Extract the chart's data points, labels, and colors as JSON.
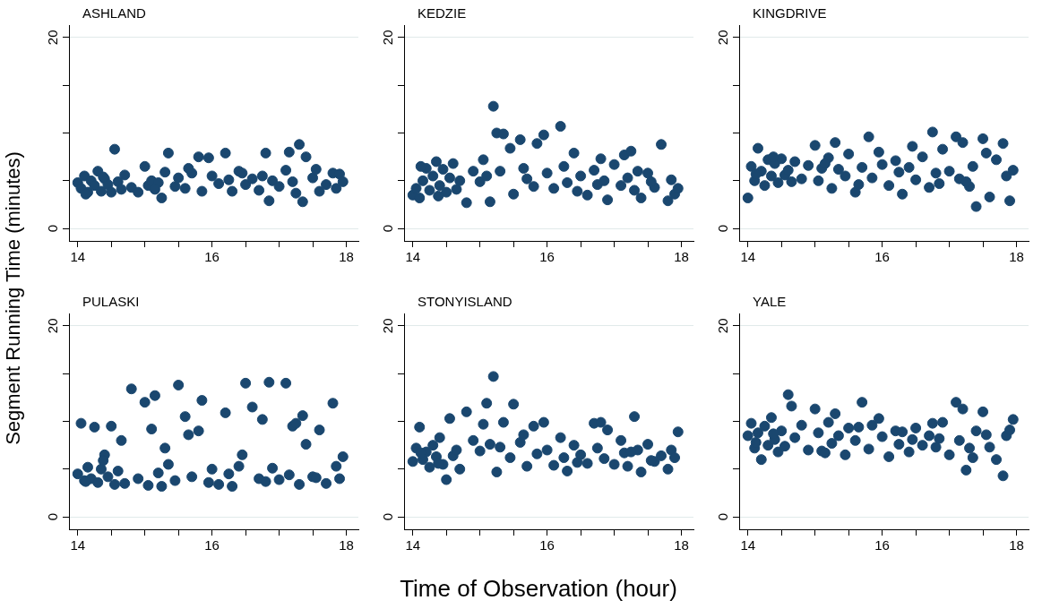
{
  "chart_data": [
    {
      "type": "scatter",
      "title": "ASHLAND",
      "ylabel": "Segment Running Time (minutes)",
      "color": "#1a476f",
      "marker": "circle",
      "grid": "y",
      "xlim": [
        13.87,
        18.18
      ],
      "ylim": [
        -1.3,
        21.3
      ],
      "xticks": [
        14,
        {
          "value": 14.5,
          "label": null
        },
        {
          "value": 15,
          "label": null
        },
        {
          "value": 15.5,
          "label": null
        },
        16,
        {
          "value": 16.5,
          "label": null
        },
        {
          "value": 17,
          "label": null
        },
        {
          "value": 17.5,
          "label": null
        },
        18
      ],
      "yticks": [
        {
          "value": 0,
          "label": "0"
        },
        {
          "value": 5,
          "label": null
        },
        {
          "value": 10,
          "label": null
        },
        {
          "value": 15,
          "label": null
        },
        {
          "value": 20,
          "label": "20"
        }
      ],
      "x": [
        14.0,
        14.05,
        14.1,
        14.15,
        14.2,
        14.25,
        14.3,
        14.35,
        14.4,
        14.45,
        14.5,
        14.55,
        14.6,
        14.65,
        14.7,
        14.8,
        14.9,
        15.0,
        15.05,
        15.1,
        15.2,
        15.25,
        15.3,
        15.35,
        15.45,
        15.5,
        15.6,
        15.7,
        15.8,
        15.85,
        15.95,
        16.0,
        16.1,
        16.2,
        16.25,
        16.3,
        16.4,
        16.5,
        16.6,
        16.7,
        16.75,
        16.8,
        16.85,
        16.9,
        17.0,
        17.1,
        17.15,
        17.2,
        17.3,
        17.35,
        17.4,
        17.5,
        17.6,
        17.7,
        17.8,
        17.85,
        17.9,
        17.95,
        14.12,
        14.38,
        15.15,
        15.65,
        16.45,
        17.25,
        17.55
      ],
      "values": [
        4.8,
        4.2,
        5.5,
        3.8,
        5.0,
        4.5,
        6.0,
        3.9,
        5.2,
        4.6,
        3.8,
        8.3,
        4.9,
        4.1,
        5.6,
        4.3,
        3.8,
        6.5,
        4.5,
        5.0,
        4.8,
        3.2,
        5.9,
        7.9,
        4.4,
        5.3,
        4.2,
        5.8,
        7.5,
        3.9,
        7.4,
        5.5,
        4.7,
        7.9,
        5.1,
        3.9,
        6.0,
        4.6,
        5.2,
        4.0,
        5.5,
        7.9,
        2.9,
        5.0,
        4.4,
        6.1,
        8.0,
        4.9,
        8.8,
        2.8,
        7.5,
        5.3,
        3.9,
        4.6,
        5.8,
        4.2,
        5.7,
        4.9,
        3.6,
        5.4,
        4.1,
        6.3,
        5.8,
        3.7,
        6.2
      ]
    },
    {
      "type": "scatter",
      "title": "KEDZIE",
      "color": "#1a476f",
      "marker": "circle",
      "grid": "y",
      "xlim": [
        13.87,
        18.18
      ],
      "ylim": [
        -1.3,
        21.3
      ],
      "xticks": [
        14,
        {
          "value": 14.5,
          "label": null
        },
        {
          "value": 15,
          "label": null
        },
        {
          "value": 15.5,
          "label": null
        },
        16,
        {
          "value": 16.5,
          "label": null
        },
        {
          "value": 17,
          "label": null
        },
        {
          "value": 17.5,
          "label": null
        },
        18
      ],
      "yticks": [
        {
          "value": 0,
          "label": "0"
        },
        {
          "value": 5,
          "label": null
        },
        {
          "value": 10,
          "label": null
        },
        {
          "value": 15,
          "label": null
        },
        {
          "value": 20,
          "label": "20"
        }
      ],
      "x": [
        14.0,
        14.05,
        14.1,
        14.15,
        14.2,
        14.25,
        14.3,
        14.35,
        14.4,
        14.45,
        14.5,
        14.55,
        14.6,
        14.65,
        14.7,
        14.8,
        14.9,
        15.0,
        15.05,
        15.1,
        15.2,
        15.25,
        15.3,
        15.35,
        15.45,
        15.5,
        15.6,
        15.7,
        15.8,
        15.85,
        15.95,
        16.0,
        16.1,
        16.2,
        16.25,
        16.3,
        16.4,
        16.5,
        16.6,
        16.7,
        16.75,
        16.8,
        16.85,
        16.9,
        17.0,
        17.1,
        17.15,
        17.2,
        17.3,
        17.35,
        17.4,
        17.5,
        17.6,
        17.7,
        17.8,
        17.85,
        17.9,
        17.95,
        14.12,
        14.38,
        15.15,
        15.65,
        16.45,
        17.25,
        17.55
      ],
      "values": [
        3.5,
        4.2,
        3.2,
        5.0,
        6.3,
        4.0,
        5.5,
        7.0,
        4.5,
        6.2,
        3.8,
        5.3,
        6.8,
        4.1,
        5.0,
        2.7,
        6.0,
        4.9,
        7.2,
        5.5,
        12.8,
        10.0,
        6.0,
        9.9,
        8.4,
        3.6,
        9.3,
        5.2,
        4.4,
        8.9,
        9.8,
        5.8,
        4.2,
        10.7,
        6.5,
        4.8,
        7.9,
        5.5,
        3.5,
        6.1,
        4.6,
        7.3,
        5.0,
        3.0,
        6.7,
        4.5,
        7.7,
        5.3,
        4.0,
        6.0,
        3.2,
        5.8,
        4.3,
        8.8,
        2.9,
        5.1,
        3.6,
        4.2,
        6.5,
        3.4,
        2.8,
        6.3,
        3.9,
        8.1,
        4.9
      ]
    },
    {
      "type": "scatter",
      "title": "KINGDRIVE",
      "color": "#1a476f",
      "marker": "circle",
      "grid": "y",
      "xlim": [
        13.87,
        18.18
      ],
      "ylim": [
        -1.3,
        21.3
      ],
      "xticks": [
        14,
        {
          "value": 14.5,
          "label": null
        },
        {
          "value": 15,
          "label": null
        },
        {
          "value": 15.5,
          "label": null
        },
        16,
        {
          "value": 16.5,
          "label": null
        },
        {
          "value": 17,
          "label": null
        },
        {
          "value": 17.5,
          "label": null
        },
        18
      ],
      "yticks": [
        {
          "value": 0,
          "label": "0"
        },
        {
          "value": 5,
          "label": null
        },
        {
          "value": 10,
          "label": null
        },
        {
          "value": 15,
          "label": null
        },
        {
          "value": 20,
          "label": "20"
        }
      ],
      "x": [
        14.0,
        14.05,
        14.1,
        14.15,
        14.2,
        14.25,
        14.3,
        14.35,
        14.4,
        14.45,
        14.5,
        14.55,
        14.6,
        14.65,
        14.7,
        14.8,
        14.9,
        15.0,
        15.05,
        15.1,
        15.2,
        15.25,
        15.3,
        15.35,
        15.45,
        15.5,
        15.6,
        15.7,
        15.8,
        15.85,
        15.95,
        16.0,
        16.1,
        16.2,
        16.25,
        16.3,
        16.4,
        16.5,
        16.6,
        16.7,
        16.75,
        16.8,
        16.85,
        16.9,
        17.0,
        17.1,
        17.15,
        17.2,
        17.3,
        17.35,
        17.4,
        17.5,
        17.6,
        17.7,
        17.8,
        17.85,
        17.9,
        17.95,
        14.12,
        14.38,
        15.15,
        15.65,
        16.45,
        17.25,
        17.55
      ],
      "values": [
        3.2,
        6.5,
        5.0,
        8.4,
        6.0,
        4.5,
        7.2,
        5.5,
        6.8,
        4.8,
        7.3,
        5.6,
        6.1,
        4.9,
        7.0,
        5.2,
        6.6,
        8.7,
        5.0,
        6.3,
        7.4,
        4.2,
        9.0,
        6.2,
        5.5,
        7.8,
        3.8,
        6.4,
        9.6,
        5.3,
        8.0,
        6.7,
        4.5,
        7.1,
        5.9,
        3.6,
        6.4,
        5.1,
        7.5,
        4.3,
        10.1,
        5.8,
        4.7,
        8.3,
        6.0,
        9.6,
        5.2,
        9.0,
        4.4,
        6.5,
        2.3,
        9.4,
        3.3,
        7.2,
        8.9,
        5.5,
        2.9,
        6.1,
        5.7,
        7.5,
        6.8,
        4.6,
        8.6,
        4.9,
        7.9
      ]
    },
    {
      "type": "scatter",
      "title": "PULASKI",
      "color": "#1a476f",
      "marker": "circle",
      "grid": "y",
      "xlim": [
        13.87,
        18.18
      ],
      "ylim": [
        -1.3,
        21.3
      ],
      "xticks": [
        14,
        {
          "value": 14.5,
          "label": null
        },
        {
          "value": 15,
          "label": null
        },
        {
          "value": 15.5,
          "label": null
        },
        16,
        {
          "value": 16.5,
          "label": null
        },
        {
          "value": 17,
          "label": null
        },
        {
          "value": 17.5,
          "label": null
        },
        18
      ],
      "yticks": [
        {
          "value": 0,
          "label": "0"
        },
        {
          "value": 5,
          "label": null
        },
        {
          "value": 10,
          "label": null
        },
        {
          "value": 15,
          "label": null
        },
        {
          "value": 20,
          "label": "20"
        }
      ],
      "x": [
        14.0,
        14.05,
        14.1,
        14.15,
        14.2,
        14.25,
        14.3,
        14.35,
        14.4,
        14.45,
        14.5,
        14.55,
        14.6,
        14.65,
        14.7,
        14.8,
        14.9,
        15.0,
        15.05,
        15.1,
        15.2,
        15.25,
        15.3,
        15.35,
        15.45,
        15.5,
        15.6,
        15.7,
        15.8,
        15.85,
        15.95,
        16.0,
        16.1,
        16.2,
        16.25,
        16.3,
        16.4,
        16.5,
        16.6,
        16.7,
        16.75,
        16.8,
        16.85,
        16.9,
        17.0,
        17.1,
        17.15,
        17.2,
        17.3,
        17.35,
        17.4,
        17.5,
        17.6,
        17.7,
        17.8,
        17.85,
        17.9,
        17.95,
        14.12,
        14.38,
        15.15,
        15.65,
        16.45,
        17.25,
        17.55
      ],
      "values": [
        4.5,
        9.8,
        3.8,
        5.2,
        4.0,
        9.4,
        3.6,
        5.0,
        6.5,
        4.2,
        9.5,
        3.4,
        4.8,
        8.0,
        3.5,
        13.4,
        4.0,
        12.0,
        3.3,
        9.2,
        4.6,
        3.2,
        7.2,
        5.5,
        3.8,
        13.8,
        10.5,
        4.2,
        9.0,
        12.2,
        3.6,
        5.0,
        3.4,
        10.9,
        4.5,
        3.2,
        5.3,
        14.0,
        11.5,
        4.0,
        10.2,
        3.7,
        14.1,
        5.1,
        3.9,
        14.0,
        4.4,
        9.5,
        3.4,
        10.6,
        7.6,
        4.2,
        9.1,
        3.5,
        11.9,
        5.3,
        4.0,
        6.3,
        3.7,
        5.9,
        12.7,
        8.6,
        6.5,
        9.8,
        4.1
      ]
    },
    {
      "type": "scatter",
      "title": "STONYISLAND",
      "xlabel": "Time of Observation (hour)",
      "color": "#1a476f",
      "marker": "circle",
      "grid": "y",
      "xlim": [
        13.87,
        18.18
      ],
      "ylim": [
        -1.3,
        21.3
      ],
      "xticks": [
        14,
        {
          "value": 14.5,
          "label": null
        },
        {
          "value": 15,
          "label": null
        },
        {
          "value": 15.5,
          "label": null
        },
        16,
        {
          "value": 16.5,
          "label": null
        },
        {
          "value": 17,
          "label": null
        },
        {
          "value": 17.5,
          "label": null
        },
        18
      ],
      "yticks": [
        {
          "value": 0,
          "label": "0"
        },
        {
          "value": 5,
          "label": null
        },
        {
          "value": 10,
          "label": null
        },
        {
          "value": 15,
          "label": null
        },
        {
          "value": 20,
          "label": "20"
        }
      ],
      "x": [
        14.0,
        14.05,
        14.1,
        14.15,
        14.2,
        14.25,
        14.3,
        14.35,
        14.4,
        14.45,
        14.5,
        14.55,
        14.6,
        14.65,
        14.7,
        14.8,
        14.9,
        15.0,
        15.05,
        15.1,
        15.2,
        15.25,
        15.3,
        15.35,
        15.45,
        15.5,
        15.6,
        15.7,
        15.8,
        15.85,
        15.95,
        16.0,
        16.1,
        16.2,
        16.25,
        16.3,
        16.4,
        16.5,
        16.6,
        16.7,
        16.75,
        16.8,
        16.85,
        16.9,
        17.0,
        17.1,
        17.15,
        17.2,
        17.3,
        17.35,
        17.4,
        17.5,
        17.6,
        17.7,
        17.8,
        17.85,
        17.9,
        17.95,
        14.12,
        14.38,
        15.15,
        15.65,
        16.45,
        17.25,
        17.55
      ],
      "values": [
        5.8,
        7.2,
        9.4,
        6.0,
        6.8,
        5.2,
        7.5,
        6.3,
        8.3,
        5.5,
        3.9,
        10.3,
        6.4,
        7.0,
        5.0,
        11.0,
        8.0,
        6.9,
        9.7,
        11.9,
        14.7,
        4.7,
        7.3,
        9.9,
        6.2,
        11.8,
        7.8,
        5.3,
        9.5,
        6.6,
        9.9,
        7.0,
        5.4,
        8.3,
        6.2,
        4.8,
        7.5,
        6.5,
        5.6,
        9.8,
        7.2,
        9.9,
        6.1,
        9.1,
        5.5,
        8.0,
        6.7,
        5.3,
        10.5,
        7.0,
        4.7,
        7.6,
        5.8,
        6.4,
        5.0,
        7.0,
        6.2,
        8.9,
        6.7,
        5.6,
        7.6,
        8.6,
        5.7,
        6.8,
        5.9
      ]
    },
    {
      "type": "scatter",
      "title": "YALE",
      "color": "#1a476f",
      "marker": "circle",
      "grid": "y",
      "xlim": [
        13.87,
        18.18
      ],
      "ylim": [
        -1.3,
        21.3
      ],
      "xticks": [
        14,
        {
          "value": 14.5,
          "label": null
        },
        {
          "value": 15,
          "label": null
        },
        {
          "value": 15.5,
          "label": null
        },
        16,
        {
          "value": 16.5,
          "label": null
        },
        {
          "value": 17,
          "label": null
        },
        {
          "value": 17.5,
          "label": null
        },
        18
      ],
      "yticks": [
        {
          "value": 0,
          "label": "0"
        },
        {
          "value": 5,
          "label": null
        },
        {
          "value": 10,
          "label": null
        },
        {
          "value": 15,
          "label": null
        },
        {
          "value": 20,
          "label": "20"
        }
      ],
      "x": [
        14.0,
        14.05,
        14.1,
        14.15,
        14.2,
        14.25,
        14.3,
        14.35,
        14.4,
        14.45,
        14.5,
        14.55,
        14.6,
        14.65,
        14.7,
        14.8,
        14.9,
        15.0,
        15.05,
        15.1,
        15.2,
        15.25,
        15.3,
        15.35,
        15.45,
        15.5,
        15.6,
        15.7,
        15.8,
        15.85,
        15.95,
        16.0,
        16.1,
        16.2,
        16.25,
        16.3,
        16.4,
        16.5,
        16.6,
        16.7,
        16.75,
        16.8,
        16.85,
        16.9,
        17.0,
        17.1,
        17.15,
        17.2,
        17.3,
        17.35,
        17.4,
        17.5,
        17.6,
        17.7,
        17.8,
        17.85,
        17.9,
        17.95,
        14.12,
        14.38,
        15.15,
        15.65,
        16.45,
        17.25,
        17.55
      ],
      "values": [
        8.5,
        9.8,
        7.2,
        8.8,
        6.0,
        9.5,
        7.5,
        10.4,
        8.1,
        6.8,
        9.0,
        7.4,
        12.8,
        11.6,
        8.3,
        9.6,
        7.0,
        11.3,
        8.8,
        6.9,
        9.9,
        7.7,
        10.8,
        8.5,
        6.5,
        9.3,
        8.0,
        12.0,
        7.1,
        9.6,
        10.3,
        8.4,
        6.3,
        9.0,
        7.6,
        8.9,
        6.8,
        9.3,
        7.5,
        8.5,
        9.8,
        7.3,
        8.2,
        9.9,
        6.5,
        12.0,
        8.0,
        11.3,
        7.2,
        6.2,
        9.0,
        11.0,
        7.3,
        6.0,
        4.3,
        8.5,
        9.1,
        10.2,
        7.8,
        8.7,
        6.7,
        9.4,
        8.1,
        4.9,
        8.6
      ]
    }
  ]
}
